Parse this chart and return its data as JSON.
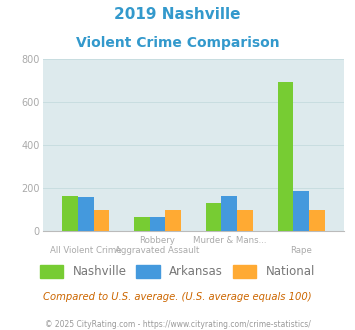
{
  "title_line1": "2019 Nashville",
  "title_line2": "Violent Crime Comparison",
  "title_color": "#3399cc",
  "nashville": [
    163,
    65,
    130,
    693
  ],
  "arkansas": [
    160,
    65,
    163,
    187
  ],
  "national": [
    100,
    100,
    100,
    100
  ],
  "nashville_color": "#77cc33",
  "arkansas_color": "#4499dd",
  "national_color": "#ffaa33",
  "ylim": [
    0,
    800
  ],
  "yticks": [
    0,
    200,
    400,
    600,
    800
  ],
  "grid_color": "#c8dde0",
  "plot_bg": "#ddeaed",
  "legend_labels": [
    "Nashville",
    "Arkansas",
    "National"
  ],
  "footnote": "Compared to U.S. average. (U.S. average equals 100)",
  "copyright": "© 2025 CityRating.com - https://www.cityrating.com/crime-statistics/",
  "footnote_color": "#cc6600",
  "copyright_color": "#999999",
  "bar_width": 0.22,
  "tick_label_color": "#aaaaaa",
  "ytick_label_color": "#aaaaaa"
}
